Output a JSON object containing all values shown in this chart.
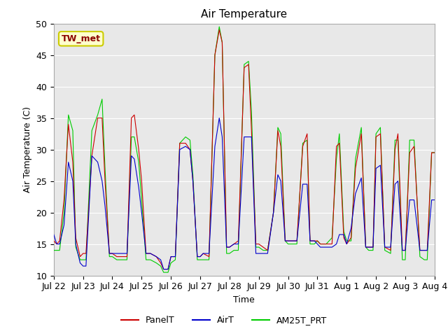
{
  "title": "Air Temperature",
  "xlabel": "Time",
  "ylabel": "Air Temperature (C)",
  "ylim": [
    10,
    50
  ],
  "xlim": [
    0,
    13
  ],
  "tick_labels": [
    "Jul 22",
    "Jul 23",
    "Jul 24",
    "Jul 25",
    "Jul 26",
    "Jul 27",
    "Jul 28",
    "Jul 29",
    "Jul 30",
    "Jul 31",
    "Aug 1",
    "Aug 2",
    "Aug 3",
    "Aug 4"
  ],
  "annotation_text": "TW_met",
  "annotation_color": "#8B0000",
  "annotation_bg": "#FFFFCC",
  "annotation_border": "#CCCC00",
  "bg_color": "#E8E8E8",
  "legend_labels": [
    "PanelT",
    "AirT",
    "AM25T_PRT"
  ],
  "line_colors": [
    "#CC0000",
    "#0000CC",
    "#00CC00"
  ],
  "panelT_x": [
    0.0,
    0.1,
    0.2,
    0.35,
    0.5,
    0.65,
    0.75,
    0.9,
    1.0,
    1.1,
    1.3,
    1.5,
    1.65,
    1.75,
    1.9,
    2.0,
    2.15,
    2.3,
    2.5,
    2.65,
    2.75,
    2.9,
    3.0,
    3.15,
    3.3,
    3.5,
    3.65,
    3.75,
    3.9,
    4.0,
    4.15,
    4.3,
    4.5,
    4.65,
    4.75,
    4.9,
    5.0,
    5.1,
    5.3,
    5.5,
    5.65,
    5.75,
    5.9,
    6.0,
    6.15,
    6.3,
    6.5,
    6.65,
    6.75,
    6.9,
    7.0,
    7.15,
    7.3,
    7.5,
    7.65,
    7.75,
    7.9,
    8.0,
    8.15,
    8.3,
    8.5,
    8.65,
    8.75,
    8.9,
    9.0,
    9.1,
    9.2,
    9.3,
    9.5,
    9.65,
    9.75,
    9.9,
    10.0,
    10.15,
    10.3,
    10.5,
    10.65,
    10.75,
    10.9,
    11.0,
    11.15,
    11.3,
    11.5,
    11.65,
    11.75,
    11.9,
    12.0,
    12.15,
    12.3,
    12.5,
    12.65,
    12.75,
    12.9,
    13.0
  ],
  "panelT_y": [
    15.5,
    15.0,
    15.5,
    22.0,
    34.0,
    28.0,
    16.0,
    13.0,
    13.5,
    13.5,
    29.0,
    35.0,
    35.0,
    25.0,
    13.5,
    13.5,
    13.0,
    13.0,
    13.0,
    35.0,
    35.5,
    30.0,
    25.0,
    13.5,
    13.5,
    13.0,
    12.0,
    11.0,
    11.0,
    13.0,
    13.0,
    31.0,
    31.0,
    30.0,
    25.0,
    13.0,
    13.0,
    13.5,
    13.0,
    45.0,
    49.0,
    47.0,
    14.5,
    14.5,
    15.0,
    15.5,
    43.0,
    43.5,
    33.0,
    15.0,
    15.0,
    14.5,
    14.0,
    20.0,
    33.0,
    30.5,
    15.5,
    15.5,
    15.5,
    15.5,
    30.5,
    32.5,
    15.5,
    15.5,
    15.5,
    15.0,
    15.0,
    15.0,
    15.0,
    30.5,
    31.0,
    16.0,
    15.0,
    16.0,
    27.0,
    32.5,
    14.5,
    14.5,
    14.5,
    32.0,
    32.5,
    14.5,
    14.0,
    30.0,
    32.5,
    14.0,
    14.0,
    29.5,
    30.5,
    14.0,
    14.0,
    14.0,
    29.5,
    29.5
  ],
  "airT_x": [
    0.0,
    0.1,
    0.2,
    0.35,
    0.5,
    0.65,
    0.75,
    0.9,
    1.0,
    1.1,
    1.3,
    1.5,
    1.65,
    1.75,
    1.9,
    2.0,
    2.15,
    2.3,
    2.5,
    2.65,
    2.75,
    2.9,
    3.0,
    3.15,
    3.3,
    3.5,
    3.65,
    3.75,
    3.9,
    4.0,
    4.15,
    4.3,
    4.5,
    4.65,
    4.75,
    4.9,
    5.0,
    5.1,
    5.3,
    5.5,
    5.65,
    5.75,
    5.9,
    6.0,
    6.15,
    6.3,
    6.5,
    6.65,
    6.75,
    6.9,
    7.0,
    7.15,
    7.3,
    7.5,
    7.65,
    7.75,
    7.9,
    8.0,
    8.15,
    8.3,
    8.5,
    8.65,
    8.75,
    8.9,
    9.0,
    9.1,
    9.2,
    9.3,
    9.5,
    9.65,
    9.75,
    9.9,
    10.0,
    10.15,
    10.3,
    10.5,
    10.65,
    10.75,
    10.9,
    11.0,
    11.15,
    11.3,
    11.5,
    11.65,
    11.75,
    11.9,
    12.0,
    12.15,
    12.3,
    12.5,
    12.65,
    12.75,
    12.9,
    13.0
  ],
  "airT_y": [
    16.5,
    15.0,
    15.0,
    18.0,
    28.0,
    25.0,
    15.0,
    12.0,
    11.5,
    11.5,
    29.0,
    28.0,
    25.0,
    21.0,
    13.5,
    13.5,
    13.5,
    13.5,
    13.5,
    29.0,
    28.5,
    24.0,
    20.0,
    13.5,
    13.5,
    13.0,
    12.5,
    11.0,
    11.0,
    13.0,
    13.0,
    30.0,
    30.5,
    30.0,
    25.0,
    13.0,
    13.0,
    13.5,
    13.5,
    30.5,
    35.0,
    32.0,
    14.5,
    14.5,
    15.0,
    15.0,
    32.0,
    32.0,
    32.0,
    13.5,
    13.5,
    13.5,
    13.5,
    20.0,
    26.0,
    25.0,
    15.5,
    15.5,
    15.5,
    15.5,
    24.5,
    24.5,
    15.5,
    15.5,
    15.0,
    14.5,
    14.5,
    14.5,
    14.5,
    15.0,
    16.5,
    16.5,
    15.0,
    17.5,
    23.0,
    25.5,
    14.5,
    14.5,
    14.5,
    27.0,
    27.5,
    14.5,
    14.5,
    24.5,
    25.0,
    14.0,
    14.0,
    22.0,
    22.0,
    14.0,
    14.0,
    14.0,
    22.0,
    22.0
  ],
  "am25T_x": [
    0.0,
    0.1,
    0.2,
    0.35,
    0.5,
    0.65,
    0.75,
    0.9,
    1.0,
    1.1,
    1.3,
    1.5,
    1.65,
    1.75,
    1.9,
    2.0,
    2.15,
    2.3,
    2.5,
    2.65,
    2.75,
    2.9,
    3.0,
    3.15,
    3.3,
    3.5,
    3.65,
    3.75,
    3.9,
    4.0,
    4.15,
    4.3,
    4.5,
    4.65,
    4.75,
    4.9,
    5.0,
    5.1,
    5.3,
    5.5,
    5.65,
    5.75,
    5.9,
    6.0,
    6.15,
    6.3,
    6.5,
    6.65,
    6.75,
    6.9,
    7.0,
    7.15,
    7.3,
    7.5,
    7.65,
    7.75,
    7.9,
    8.0,
    8.15,
    8.3,
    8.5,
    8.65,
    8.75,
    8.9,
    9.0,
    9.1,
    9.2,
    9.3,
    9.5,
    9.65,
    9.75,
    9.9,
    10.0,
    10.15,
    10.3,
    10.5,
    10.65,
    10.75,
    10.9,
    11.0,
    11.15,
    11.3,
    11.5,
    11.65,
    11.75,
    11.9,
    12.0,
    12.15,
    12.3,
    12.5,
    12.65,
    12.75,
    12.9,
    13.0
  ],
  "am25T_y": [
    14.0,
    14.0,
    14.0,
    20.0,
    35.5,
    33.0,
    14.5,
    12.5,
    12.5,
    12.5,
    33.0,
    35.5,
    38.0,
    27.0,
    13.0,
    13.0,
    12.5,
    12.5,
    12.5,
    32.0,
    32.0,
    28.0,
    22.0,
    12.5,
    12.5,
    12.0,
    11.5,
    10.5,
    10.5,
    12.0,
    12.5,
    31.0,
    32.0,
    31.5,
    26.0,
    12.5,
    12.5,
    12.5,
    12.5,
    45.0,
    49.5,
    47.0,
    13.5,
    13.5,
    14.0,
    14.0,
    43.5,
    44.0,
    36.0,
    14.5,
    14.5,
    14.0,
    14.0,
    20.0,
    33.5,
    32.5,
    15.5,
    15.0,
    15.0,
    15.0,
    31.0,
    31.5,
    15.0,
    15.0,
    15.5,
    15.0,
    15.0,
    15.0,
    16.0,
    28.5,
    32.5,
    17.0,
    15.5,
    15.5,
    28.5,
    33.5,
    14.5,
    14.0,
    14.0,
    32.5,
    33.5,
    14.0,
    13.5,
    31.5,
    31.5,
    12.5,
    12.5,
    31.5,
    31.5,
    13.0,
    12.5,
    12.5,
    29.5,
    29.5
  ]
}
